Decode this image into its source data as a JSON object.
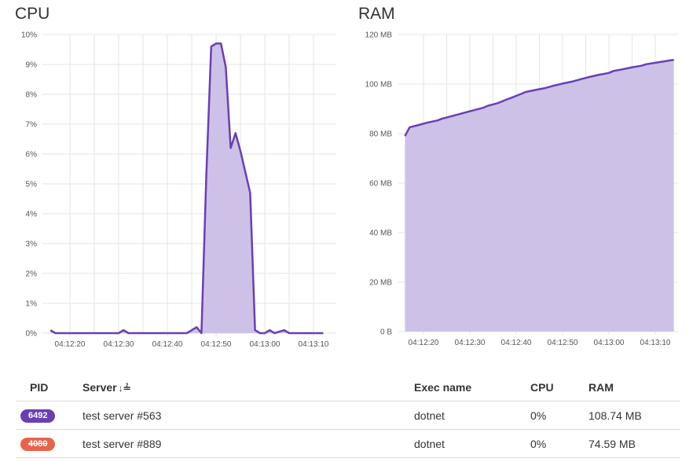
{
  "cpu": {
    "title": "CPU",
    "y_ticks": [
      "10%",
      "9%",
      "8%",
      "7%",
      "6%",
      "5%",
      "4%",
      "3%",
      "2%",
      "1%",
      "0%"
    ],
    "x_ticks": [
      "04:12:20",
      "04:12:30",
      "04:12:40",
      "04:12:50",
      "04:13:00",
      "04:13:10"
    ]
  },
  "ram": {
    "title": "RAM",
    "y_ticks": [
      "120 MB",
      "100 MB",
      "80 MB",
      "60 MB",
      "40 MB",
      "20 MB",
      "0 B"
    ],
    "x_ticks": [
      "04:12:20",
      "04:12:30",
      "04:12:40",
      "04:12:50",
      "04:13:00",
      "04:13:10"
    ]
  },
  "chart_data": [
    {
      "type": "area",
      "title": "CPU",
      "xlabel": "",
      "ylabel": "",
      "ylim": [
        0,
        10
      ],
      "y_unit": "%",
      "x_seconds_labels": {
        "04:12:20": 20,
        "04:12:30": 30,
        "04:12:40": 40,
        "04:12:50": 50,
        "04:13:00": 60,
        "04:13:10": 70
      },
      "x": [
        16,
        17,
        18,
        20,
        22,
        24,
        26,
        28,
        30,
        31,
        32,
        34,
        36,
        38,
        40,
        42,
        44,
        46,
        47,
        48,
        49,
        50,
        51,
        52,
        53,
        54,
        55,
        57,
        58,
        59,
        60,
        61,
        62,
        63,
        64,
        65,
        66,
        67,
        68,
        69,
        70,
        71,
        72
      ],
      "values": [
        0.1,
        0,
        0,
        0,
        0,
        0,
        0,
        0,
        0,
        0.1,
        0,
        0,
        0,
        0,
        0,
        0,
        0,
        0.2,
        0,
        5.3,
        9.6,
        9.7,
        9.7,
        8.9,
        6.2,
        6.7,
        6.1,
        4.7,
        0.1,
        0,
        0,
        0.1,
        0,
        0.05,
        0.1,
        0,
        0,
        0,
        0,
        0,
        0,
        0,
        0
      ]
    },
    {
      "type": "area",
      "title": "RAM",
      "xlabel": "",
      "ylabel": "",
      "ylim": [
        0,
        120
      ],
      "y_unit": "MB",
      "x_seconds_labels": {
        "04:12:20": 20,
        "04:12:30": 30,
        "04:12:40": 40,
        "04:12:50": 50,
        "04:13:00": 60,
        "04:13:10": 70
      },
      "x": [
        16,
        17,
        19,
        21,
        23,
        24,
        26,
        28,
        30,
        31,
        33,
        34,
        36,
        38,
        39,
        41,
        42,
        44,
        46,
        48,
        50,
        52,
        54,
        56,
        58,
        60,
        61,
        63,
        65,
        67,
        68,
        70,
        72,
        74
      ],
      "values": [
        79,
        82.5,
        83.5,
        84.5,
        85.3,
        86,
        87,
        88,
        89,
        89.5,
        90.5,
        91.3,
        92.3,
        93.8,
        94.5,
        96,
        96.8,
        97.6,
        98.3,
        99.3,
        100.2,
        101,
        102,
        103,
        103.8,
        104.5,
        105.3,
        106,
        106.8,
        107.4,
        108,
        108.6,
        109.2,
        109.8
      ]
    }
  ],
  "table": {
    "headers": {
      "pid": "PID",
      "server": "Server",
      "exec": "Exec name",
      "cpu": "CPU",
      "ram": "RAM"
    },
    "sort_icon": "↓≟",
    "rows": [
      {
        "pid": "6492",
        "server": "test server #563",
        "exec": "dotnet",
        "cpu": "0%",
        "ram": "108.74 MB",
        "status_color": "#6a3fb3"
      },
      {
        "pid": "4080",
        "server": "test server #889",
        "exec": "dotnet",
        "cpu": "0%",
        "ram": "74.59 MB",
        "status_color": "#e8634d"
      }
    ]
  }
}
